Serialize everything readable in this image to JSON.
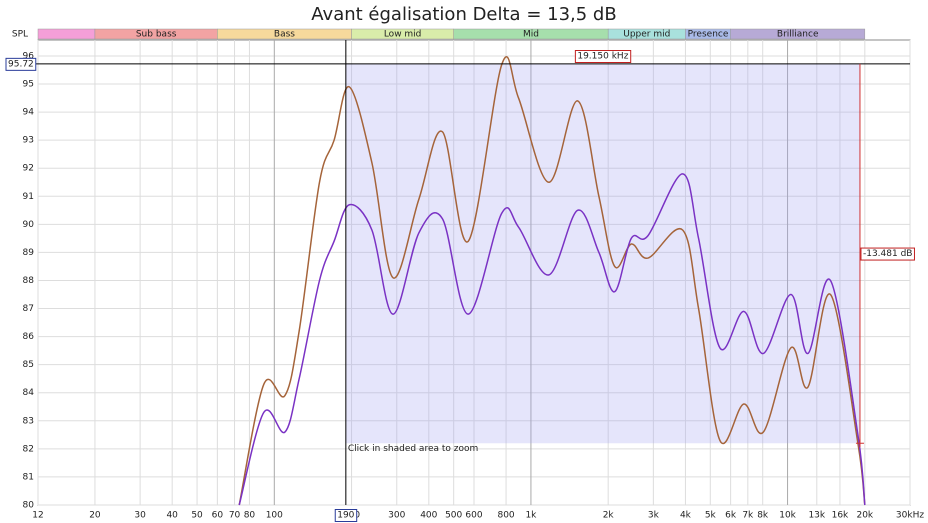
{
  "chart_data": {
    "type": "line",
    "title": "Avant égalisation Delta = 13,5 dB",
    "y_label": "SPL",
    "x_scale": "log",
    "grid": true,
    "xlim": [
      12,
      30000
    ],
    "ylim": [
      80,
      96.57
    ],
    "xticks": [
      12,
      20,
      30,
      40,
      50,
      60,
      70,
      80,
      100,
      200,
      300,
      400,
      500,
      600,
      800,
      {
        "value": 1000,
        "label": "1k"
      },
      {
        "value": 2000,
        "label": "2k"
      },
      {
        "value": 3000,
        "label": "3k"
      },
      {
        "value": 4000,
        "label": "4k"
      },
      {
        "value": 5000,
        "label": "5k"
      },
      {
        "value": 6000,
        "label": "6k"
      },
      {
        "value": 7000,
        "label": "7k"
      },
      {
        "value": 8000,
        "label": "8k"
      },
      {
        "value": 10000,
        "label": "10k"
      },
      {
        "value": 13000,
        "label": "13k"
      },
      {
        "value": 16000,
        "label": "16k"
      },
      {
        "value": 20000,
        "label": "20k"
      },
      {
        "value": 30000,
        "label": "30kHz"
      }
    ],
    "yticks": [
      80,
      81,
      82,
      83,
      84,
      85,
      86,
      87,
      88,
      89,
      90,
      91,
      92,
      93,
      94,
      95,
      96
    ],
    "bands": [
      {
        "name": null,
        "from": 12,
        "to": 20,
        "color": "#f59fd8"
      },
      {
        "name": "Sub bass",
        "from": 20,
        "to": 60,
        "color": "#f2a3a3"
      },
      {
        "name": "Bass",
        "from": 60,
        "to": 200,
        "color": "#f6d99c"
      },
      {
        "name": "Low mid",
        "from": 200,
        "to": 500,
        "color": "#d9edaa"
      },
      {
        "name": "Mid",
        "from": 500,
        "to": 2000,
        "color": "#a6dfac"
      },
      {
        "name": "Upper mid",
        "from": 2000,
        "to": 4000,
        "color": "#a9e1dd"
      },
      {
        "name": "Presence",
        "from": 4000,
        "to": 6000,
        "color": "#aabbe9"
      },
      {
        "name": "Brilliance",
        "from": 6000,
        "to": 20000,
        "color": "#b7aad6"
      }
    ],
    "x": [
      73,
      91,
      110,
      125,
      150,
      171,
      196,
      240,
      290,
      366,
      452,
      570,
      770,
      895,
      1175,
      1520,
      1840,
      2120,
      2460,
      2860,
      3900,
      4500,
      5450,
      6750,
      8050,
      10300,
      12000,
      14700,
      18800,
      20000
    ],
    "series": [
      {
        "color": "#a5643a",
        "values": [
          80,
          84.3,
          83.9,
          86.2,
          91.5,
          93,
          94.9,
          92.2,
          88.1,
          90.9,
          93.3,
          89.4,
          95.7,
          94.5,
          91.5,
          94.4,
          91,
          88.5,
          89.3,
          88.8,
          89.8,
          87,
          82.3,
          83.6,
          82.6,
          85.6,
          84.2,
          87.5,
          82.2,
          80
        ]
      },
      {
        "color": "#7a32c4",
        "values": [
          80,
          83.3,
          82.6,
          84.5,
          88,
          89.4,
          90.7,
          89.8,
          86.8,
          89.7,
          90.2,
          86.8,
          90.4,
          89.9,
          88.2,
          90.5,
          89,
          87.6,
          89.5,
          89.6,
          91.8,
          89.5,
          85.6,
          86.9,
          85.4,
          87.5,
          85.4,
          88,
          82.5,
          80
        ]
      }
    ],
    "cursor": {
      "x": 190,
      "y": 95.72
    },
    "marker": {
      "value": 19150,
      "label": "19.150 kHz"
    },
    "delta": {
      "value": -13.481,
      "label": "-13.481 dB"
    },
    "zoom_floor": 82.2,
    "annotation": "Click in shaded area to zoom"
  }
}
